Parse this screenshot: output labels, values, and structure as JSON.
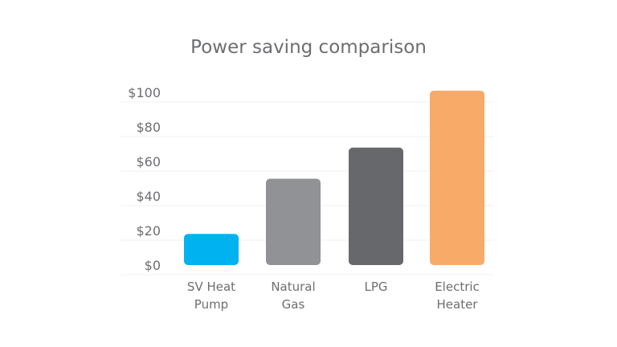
{
  "chart_data": {
    "type": "bar",
    "title": "Power saving comparison",
    "xlabel": "",
    "ylabel": "",
    "categories": [
      [
        "SV Heat",
        "Pump"
      ],
      [
        "Natural",
        "Gas"
      ],
      [
        "LPG"
      ],
      [
        "Electric",
        "Heater"
      ]
    ],
    "values": [
      18,
      50,
      68,
      101
    ],
    "colors": [
      "#00b2ef",
      "#909295",
      "#66686c",
      "#f8aa69"
    ],
    "ylim": [
      0,
      100
    ],
    "yticks": [
      0,
      20,
      40,
      60,
      80,
      100
    ],
    "ytick_labels": [
      "$0",
      "$20",
      "$40",
      "$60",
      "$80",
      "$100"
    ],
    "grid": true
  }
}
